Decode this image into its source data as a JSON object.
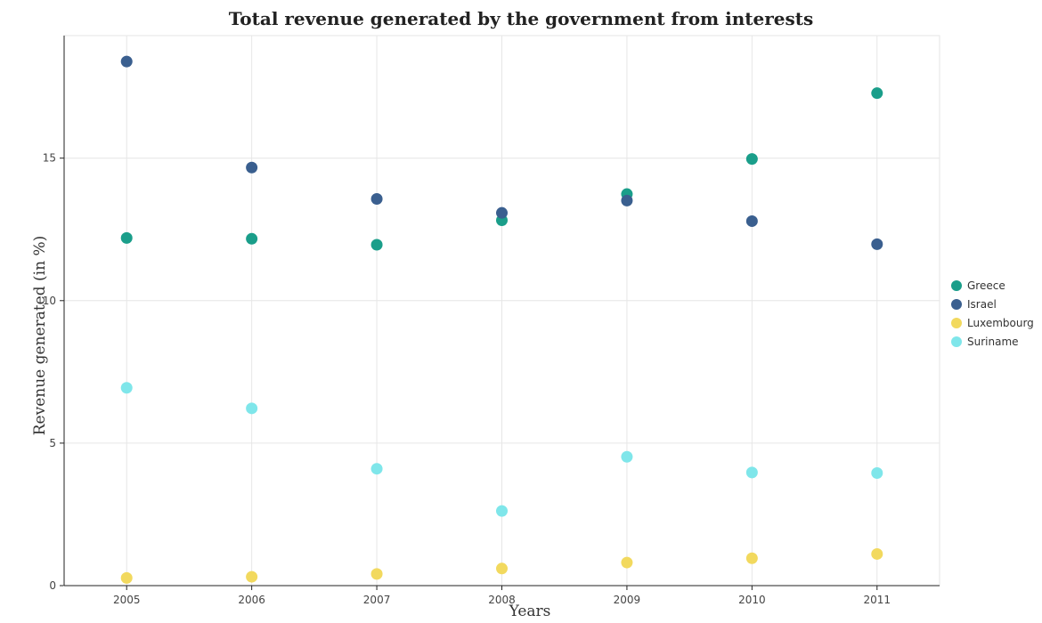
{
  "chart_data": {
    "type": "scatter",
    "title": "Total revenue generated by the government from interests",
    "xlabel": "Years",
    "ylabel": "Revenue generated (in %)",
    "x": [
      "2005",
      "2006",
      "2007",
      "2008",
      "2009",
      "2010",
      "2011"
    ],
    "ylim": [
      0,
      19.3
    ],
    "yticks": [
      0,
      5,
      10,
      15
    ],
    "grid": true,
    "legend_position": "right",
    "series": [
      {
        "name": "Greece",
        "color": "#1a9e8a",
        "values": [
          12.2,
          12.17,
          11.96,
          12.82,
          13.74,
          14.97,
          17.28
        ]
      },
      {
        "name": "Israel",
        "color": "#3a5f8f",
        "values": [
          18.39,
          14.67,
          13.57,
          13.08,
          13.51,
          12.79,
          11.98
        ]
      },
      {
        "name": "Luxembourg",
        "color": "#f2d95e",
        "values": [
          0.27,
          0.31,
          0.41,
          0.6,
          0.81,
          0.96,
          1.11
        ]
      },
      {
        "name": "Suriname",
        "color": "#7fe6ea",
        "values": [
          6.94,
          6.22,
          4.1,
          2.62,
          4.52,
          3.97,
          3.95
        ]
      }
    ]
  }
}
